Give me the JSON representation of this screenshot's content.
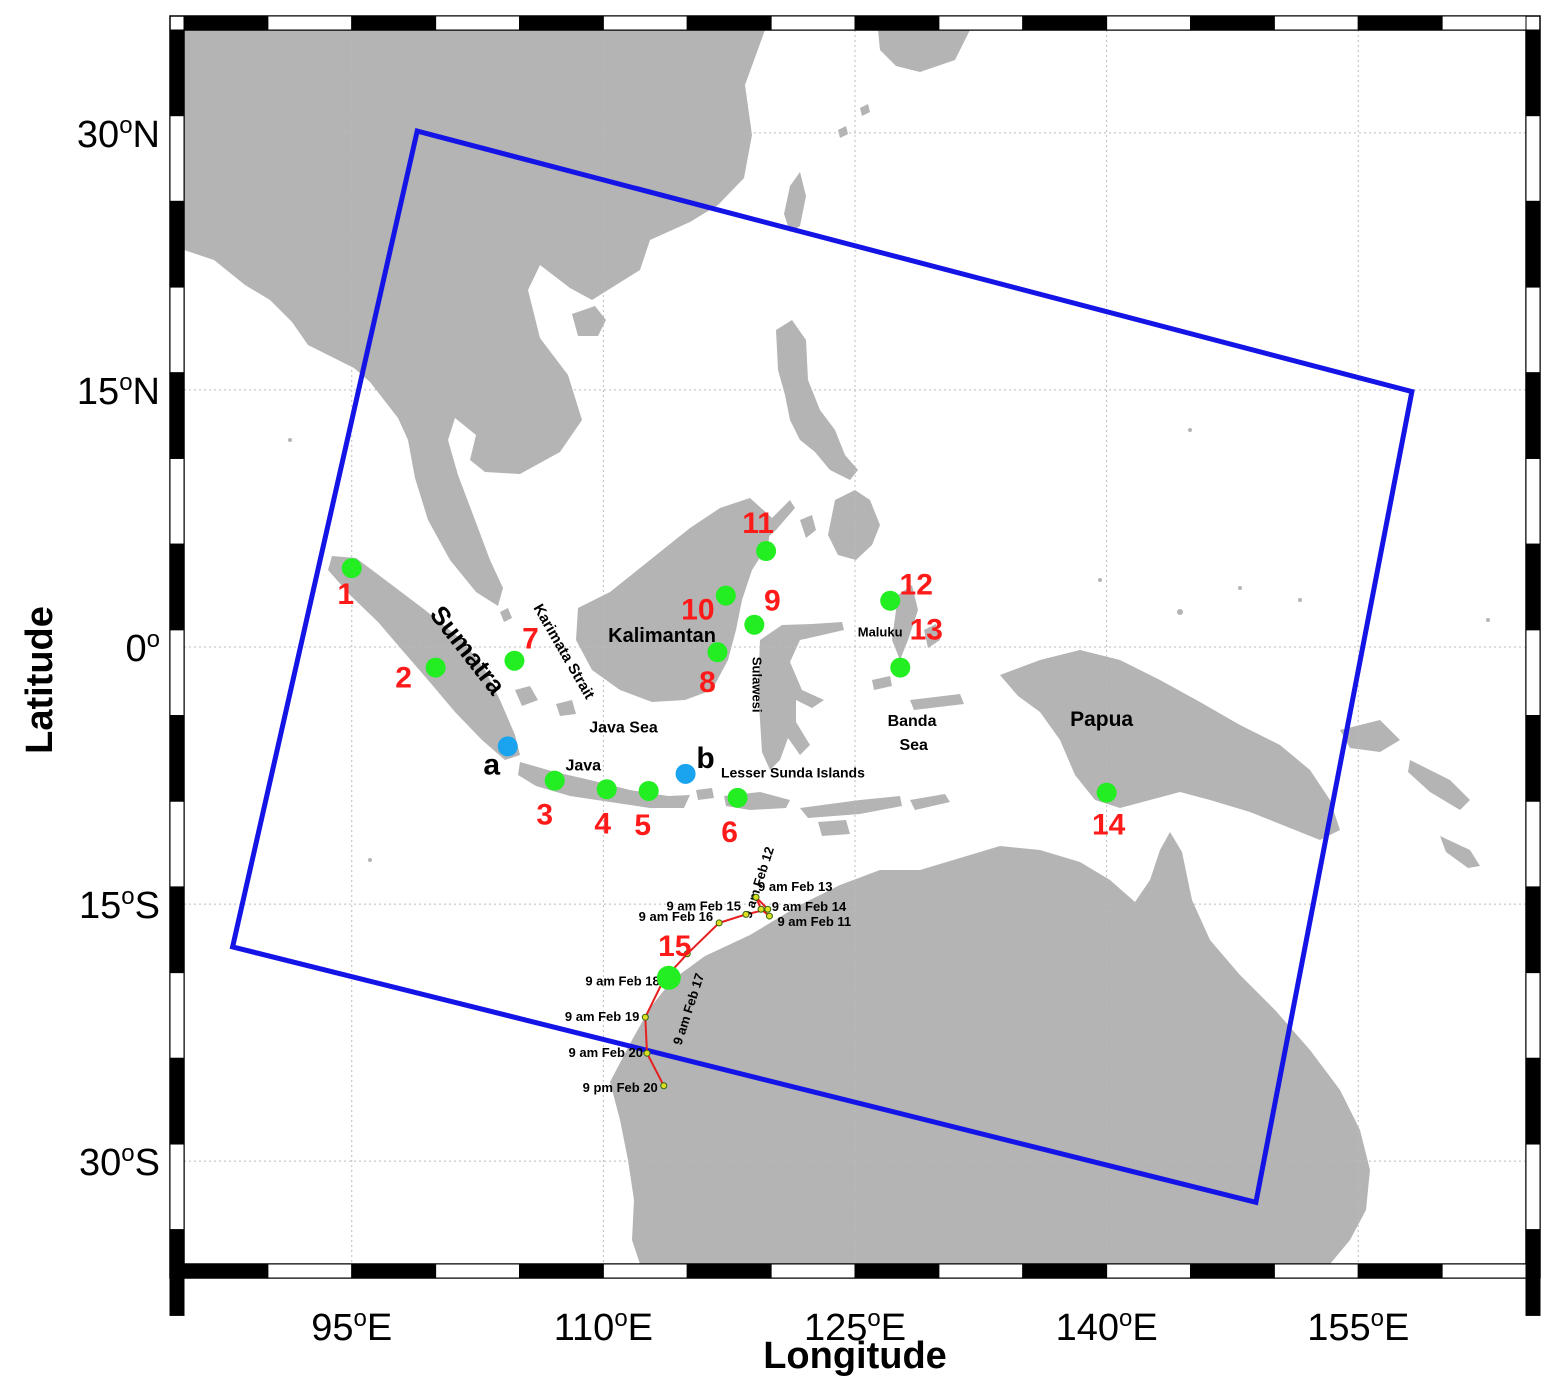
{
  "axes": {
    "xlabel": "Longitude",
    "ylabel": "Latitude",
    "xlim": [
      85,
      165
    ],
    "ylim": [
      -36,
      36
    ],
    "x_ticks": [
      {
        "value": 95,
        "label": "95",
        "hemi": "E"
      },
      {
        "value": 110,
        "label": "110",
        "hemi": "E"
      },
      {
        "value": 125,
        "label": "125",
        "hemi": "E"
      },
      {
        "value": 140,
        "label": "140",
        "hemi": "E"
      },
      {
        "value": 155,
        "label": "155",
        "hemi": "E"
      }
    ],
    "y_ticks": [
      {
        "value": 30,
        "label": "30",
        "hemi": "N"
      },
      {
        "value": 15,
        "label": "15",
        "hemi": "N"
      },
      {
        "value": 0,
        "label": "0",
        "hemi": ""
      },
      {
        "value": -15,
        "label": "15",
        "hemi": "S"
      },
      {
        "value": -30,
        "label": "30",
        "hemi": "S"
      }
    ],
    "degree_symbol": "o",
    "grid": true
  },
  "colors": {
    "land": "#b4b4b4",
    "domain_box": "#1414e6",
    "station": "#22ee22",
    "special_point": "#1aa3ee",
    "station_label": "#ff1a1a",
    "track": "#e62020"
  },
  "domain_box": [
    {
      "lon": 98.9,
      "lat": 30.1
    },
    {
      "lon": 158.2,
      "lat": 14.9
    },
    {
      "lon": 148.9,
      "lat": -32.4
    },
    {
      "lon": 87.9,
      "lat": -17.5
    }
  ],
  "stations": [
    {
      "id": "1",
      "lon": 95.0,
      "lat": 4.6
    },
    {
      "id": "2",
      "lon": 100.0,
      "lat": -1.2
    },
    {
      "id": "3",
      "lon": 107.1,
      "lat": -7.8
    },
    {
      "id": "4",
      "lon": 110.2,
      "lat": -8.3
    },
    {
      "id": "5",
      "lon": 112.7,
      "lat": -8.4
    },
    {
      "id": "6",
      "lon": 118.0,
      "lat": -8.8
    },
    {
      "id": "7",
      "lon": 104.7,
      "lat": -0.8
    },
    {
      "id": "8",
      "lon": 116.8,
      "lat": -0.3
    },
    {
      "id": "9",
      "lon": 119.0,
      "lat": 1.3
    },
    {
      "id": "10",
      "lon": 117.3,
      "lat": 3.0
    },
    {
      "id": "11",
      "lon": 119.7,
      "lat": 5.6
    },
    {
      "id": "12",
      "lon": 127.1,
      "lat": 2.7
    },
    {
      "id": "13",
      "lon": 127.7,
      "lat": -1.2
    },
    {
      "id": "14",
      "lon": 140.0,
      "lat": -8.5
    },
    {
      "id": "15",
      "lon": 113.9,
      "lat": -19.3
    }
  ],
  "special_points": [
    {
      "id": "a",
      "lon": 104.3,
      "lat": -5.8
    },
    {
      "id": "b",
      "lon": 114.9,
      "lat": -7.4
    }
  ],
  "place_names": [
    {
      "text": "Sumatra",
      "lon": 101.5,
      "lat": -0.5,
      "rotate": 52,
      "size": 26
    },
    {
      "text": "Karimata Strait",
      "lon": 107.4,
      "lat": -0.4,
      "rotate": 60,
      "size": 15
    },
    {
      "text": "Kalimantan",
      "lon": 113.5,
      "lat": 0.3,
      "rotate": 0,
      "size": 20
    },
    {
      "text": "Java Sea",
      "lon": 111.2,
      "lat": -5.0,
      "rotate": 0,
      "size": 16
    },
    {
      "text": "Java",
      "lon": 108.8,
      "lat": -7.2,
      "rotate": 0,
      "size": 16
    },
    {
      "text": "Lesser Sunda Islands",
      "lon": 121.3,
      "lat": -7.6,
      "rotate": 0,
      "size": 14
    },
    {
      "text": "Sulawesi",
      "lon": 118.9,
      "lat": -2.2,
      "rotate": 90,
      "size": 13
    },
    {
      "text": "Maluku",
      "lon": 126.5,
      "lat": 0.6,
      "rotate": 0,
      "size": 13
    },
    {
      "text": "Banda",
      "lon": 128.4,
      "lat": -4.6,
      "rotate": 0,
      "size": 16
    },
    {
      "text": "Sea",
      "lon": 128.5,
      "lat": -6.0,
      "rotate": 0,
      "size": 16
    },
    {
      "text": "Papua",
      "lon": 139.7,
      "lat": -4.6,
      "rotate": 0,
      "size": 21
    }
  ],
  "cyclone_track": {
    "points": [
      {
        "label": "9 am Feb 11",
        "lon": 119.9,
        "lat": -15.7
      },
      {
        "label": "9 am Feb 12",
        "lon": 119.4,
        "lat": -15.3
      },
      {
        "label": "9 am Feb 13",
        "lon": 119.1,
        "lat": -14.6
      },
      {
        "label": "9 am Feb 14",
        "lon": 119.8,
        "lat": -15.3
      },
      {
        "label": "9 am Feb 15",
        "lon": 118.5,
        "lat": -15.6
      },
      {
        "label": "9 am Feb 16",
        "lon": 116.9,
        "lat": -16.1
      },
      {
        "label": "9 am Feb 17",
        "lon": 115.0,
        "lat": -17.9
      },
      {
        "label": "9 am Feb 18",
        "lon": 113.6,
        "lat": -19.4
      },
      {
        "label": "9 am Feb 19",
        "lon": 112.5,
        "lat": -21.6
      },
      {
        "label": "9 am Feb 20",
        "lon": 112.6,
        "lat": -23.7
      },
      {
        "label": "9 pm Feb 20",
        "lon": 113.6,
        "lat": -25.6
      }
    ]
  }
}
